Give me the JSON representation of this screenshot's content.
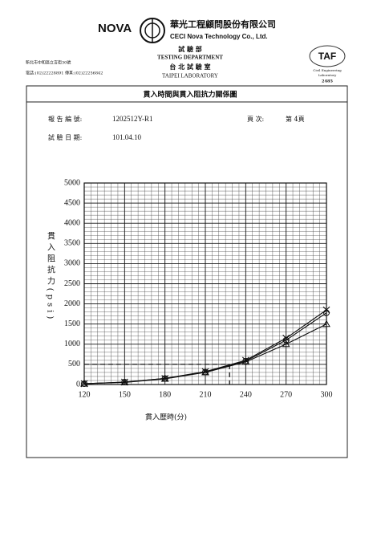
{
  "header": {
    "brand": "NOVA",
    "company_zh": "華光工程顧問股份有限公司",
    "company_en": "CECI Nova Technology Co., Ltd.",
    "dept_zh": "試 驗 部",
    "dept_en": "TESTING DEPARTMENT",
    "lab_zh": "台 北 試 驗 室",
    "lab_en": "TAIPEI LABORATORY",
    "address": "新北市中和區立言街30號",
    "contact": "電話:(02)22228891 傳真:(02)22256842",
    "accreditation": {
      "logo": "TAF",
      "line1": "Civil Engineering",
      "line2": "Laboratory",
      "number": "2485"
    }
  },
  "report": {
    "title": "貫入時間與貫入阻抗力關係圖",
    "report_no_label": "報 告 編 號:",
    "report_no": "1202512Y-R1",
    "page_label": "頁    次:",
    "page": "第 4頁",
    "date_label": "試 驗 日 期:",
    "date": "101.04.10"
  },
  "chart_data": {
    "type": "line",
    "x_label": "貫入歷時(分)",
    "y_label": "貫入阻抗力(psi)",
    "x": [
      120,
      150,
      180,
      210,
      240,
      270,
      300
    ],
    "series": [
      {
        "marker": "x",
        "color": "#111",
        "values": [
          20,
          60,
          150,
          320,
          600,
          1150,
          1850
        ]
      },
      {
        "marker": "circle",
        "color": "#111",
        "values": [
          20,
          60,
          150,
          310,
          580,
          1100,
          1780
        ]
      },
      {
        "marker": "triangle",
        "color": "#111",
        "values": [
          20,
          50,
          140,
          300,
          560,
          1000,
          1500
        ]
      }
    ],
    "reference": {
      "y": 500,
      "x": 228
    },
    "xlim": [
      120,
      300
    ],
    "xticks": [
      120,
      150,
      180,
      210,
      240,
      270,
      300
    ],
    "ylim": [
      0,
      5000
    ],
    "yticks": [
      0,
      500,
      1000,
      1500,
      2000,
      2500,
      3000,
      3500,
      4000,
      4500,
      5000
    ],
    "grid": true
  }
}
